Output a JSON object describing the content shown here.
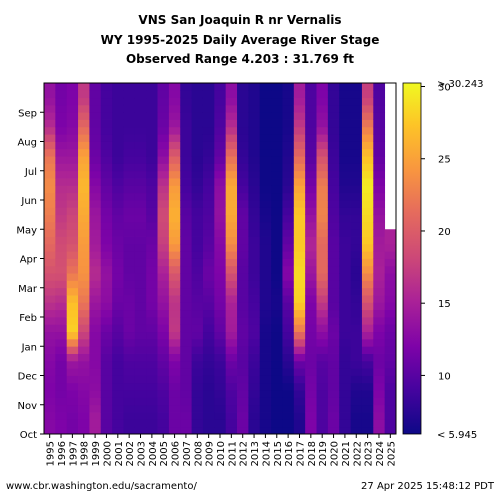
{
  "chart_data": {
    "type": "heatmap",
    "title_lines": [
      "VNS San Joaquin R nr Vernalis",
      "WY 1995-2025 Daily Average River Stage",
      "Observed Range 4.203 : 31.769 ft"
    ],
    "x_categories": [
      "1995",
      "1996",
      "1997",
      "1998",
      "1999",
      "2000",
      "2001",
      "2002",
      "2003",
      "2004",
      "2005",
      "2006",
      "2007",
      "2008",
      "2009",
      "2010",
      "2011",
      "2012",
      "2013",
      "2014",
      "2015",
      "2016",
      "2017",
      "2018",
      "2019",
      "2020",
      "2021",
      "2022",
      "2023",
      "2024",
      "2025"
    ],
    "y_months": [
      "Oct",
      "Nov",
      "Dec",
      "Jan",
      "Feb",
      "Mar",
      "Apr",
      "May",
      "Jun",
      "Jul",
      "Aug",
      "Sep"
    ],
    "value_units": "ft",
    "colorbar": {
      "min": 5.945,
      "max": 30.243,
      "ticks": [
        10,
        15,
        20,
        25,
        30
      ],
      "min_label": "< 5.945",
      "max_label": "> 30.243",
      "colormap": "plasma"
    },
    "wy_monthly_stage_ft": {
      "1995": [
        12.5,
        12.0,
        12.5,
        13.5,
        16.5,
        19.0,
        21.0,
        22.5,
        23.5,
        22.0,
        16.0,
        13.5
      ],
      "1996": [
        12.0,
        11.5,
        11.5,
        13.5,
        16.0,
        19.0,
        18.5,
        17.0,
        16.0,
        14.0,
        12.0,
        11.5
      ],
      "1997": [
        11.5,
        12.0,
        14.0,
        28.0,
        27.0,
        22.0,
        19.0,
        18.0,
        16.0,
        14.0,
        12.5,
        12.0
      ],
      "1998": [
        12.0,
        12.5,
        13.5,
        18.0,
        22.0,
        24.0,
        24.5,
        25.5,
        26.5,
        25.0,
        21.0,
        17.0
      ],
      "1999": [
        14.5,
        13.0,
        12.5,
        12.5,
        14.0,
        16.0,
        14.5,
        14.0,
        12.5,
        11.0,
        10.5,
        10.5
      ],
      "2000": [
        10.0,
        10.0,
        10.0,
        11.0,
        13.0,
        13.5,
        12.0,
        11.5,
        10.5,
        9.5,
        9.0,
        9.0
      ],
      "2001": [
        9.0,
        9.0,
        9.0,
        10.0,
        11.0,
        11.5,
        11.0,
        10.5,
        9.5,
        8.5,
        8.5,
        8.5
      ],
      "2002": [
        8.5,
        9.0,
        9.5,
        11.0,
        11.0,
        10.5,
        10.5,
        11.0,
        10.0,
        9.0,
        8.5,
        8.5
      ],
      "2003": [
        8.5,
        9.0,
        9.5,
        10.5,
        10.5,
        10.5,
        10.5,
        11.0,
        10.0,
        9.0,
        8.5,
        8.5
      ],
      "2004": [
        8.5,
        9.0,
        9.5,
        10.5,
        11.5,
        11.5,
        11.0,
        10.0,
        9.5,
        8.5,
        8.5,
        8.5
      ],
      "2005": [
        9.0,
        9.5,
        10.5,
        12.0,
        13.5,
        15.0,
        17.5,
        18.5,
        16.5,
        13.0,
        11.0,
        10.5
      ],
      "2006": [
        11.0,
        11.0,
        12.0,
        17.0,
        16.5,
        19.5,
        24.5,
        26.0,
        24.5,
        20.0,
        14.0,
        12.5
      ],
      "2007": [
        11.0,
        10.5,
        10.5,
        10.5,
        10.5,
        10.5,
        10.5,
        10.0,
        9.0,
        8.5,
        8.5,
        8.0
      ],
      "2008": [
        8.0,
        8.0,
        8.5,
        10.5,
        10.0,
        9.5,
        9.0,
        9.0,
        8.0,
        7.5,
        7.5,
        7.5
      ],
      "2009": [
        7.5,
        7.5,
        8.0,
        9.0,
        10.0,
        11.0,
        10.0,
        9.5,
        9.0,
        8.0,
        7.5,
        7.5
      ],
      "2010": [
        7.5,
        8.0,
        8.5,
        10.5,
        11.5,
        12.0,
        12.5,
        13.5,
        13.0,
        10.5,
        9.5,
        9.0
      ],
      "2011": [
        9.0,
        9.5,
        11.0,
        14.5,
        15.0,
        19.0,
        23.5,
        25.5,
        25.5,
        21.5,
        16.0,
        13.0
      ],
      "2012": [
        11.0,
        10.5,
        10.0,
        10.5,
        10.0,
        10.0,
        10.5,
        10.5,
        9.0,
        8.0,
        7.5,
        7.5
      ],
      "2013": [
        7.5,
        8.0,
        8.5,
        9.5,
        9.0,
        8.5,
        8.5,
        8.0,
        7.5,
        7.0,
        7.0,
        7.0
      ],
      "2014": [
        6.5,
        6.5,
        6.5,
        6.5,
        7.0,
        7.0,
        7.0,
        6.5,
        6.0,
        6.0,
        5.5,
        5.5
      ],
      "2015": [
        5.5,
        5.5,
        6.0,
        6.0,
        6.5,
        6.0,
        6.0,
        6.0,
        5.5,
        5.0,
        5.0,
        5.0
      ],
      "2016": [
        5.5,
        6.0,
        7.5,
        9.0,
        10.0,
        12.5,
        10.5,
        9.0,
        7.5,
        7.0,
        6.5,
        6.5
      ],
      "2017": [
        7.0,
        8.0,
        11.0,
        22.0,
        28.0,
        28.5,
        27.5,
        27.5,
        25.0,
        21.0,
        17.0,
        14.5
      ],
      "2018": [
        12.0,
        11.5,
        11.0,
        11.5,
        12.0,
        14.0,
        15.5,
        13.5,
        11.5,
        10.0,
        9.5,
        9.5
      ],
      "2019": [
        9.5,
        9.5,
        10.0,
        13.0,
        17.0,
        21.0,
        21.0,
        23.0,
        22.5,
        19.0,
        13.5,
        12.0
      ],
      "2020": [
        11.0,
        10.5,
        10.5,
        11.0,
        10.0,
        10.0,
        10.0,
        9.5,
        9.0,
        8.5,
        8.0,
        8.0
      ],
      "2021": [
        8.0,
        8.0,
        8.0,
        8.5,
        8.5,
        8.5,
        8.5,
        8.0,
        7.0,
        6.5,
        6.5,
        6.5
      ],
      "2022": [
        6.5,
        7.0,
        8.5,
        8.5,
        8.0,
        7.5,
        8.0,
        8.0,
        7.0,
        6.5,
        6.5,
        6.5
      ],
      "2023": [
        6.5,
        7.0,
        9.0,
        15.0,
        19.0,
        23.5,
        27.5,
        28.5,
        29.5,
        27.0,
        22.5,
        17.5
      ],
      "2024": [
        13.0,
        12.0,
        11.0,
        12.0,
        14.0,
        15.0,
        14.5,
        13.5,
        12.0,
        10.5,
        10.0,
        9.5
      ],
      "2025": [
        9.5,
        9.5,
        10.5,
        11.0,
        12.5,
        13.0,
        15.0,
        null,
        null,
        null,
        null,
        null
      ]
    }
  },
  "footer": {
    "left": "www.cbr.washington.edu/sacramento/",
    "right": "27 Apr 2025 15:48:12 PDT"
  }
}
